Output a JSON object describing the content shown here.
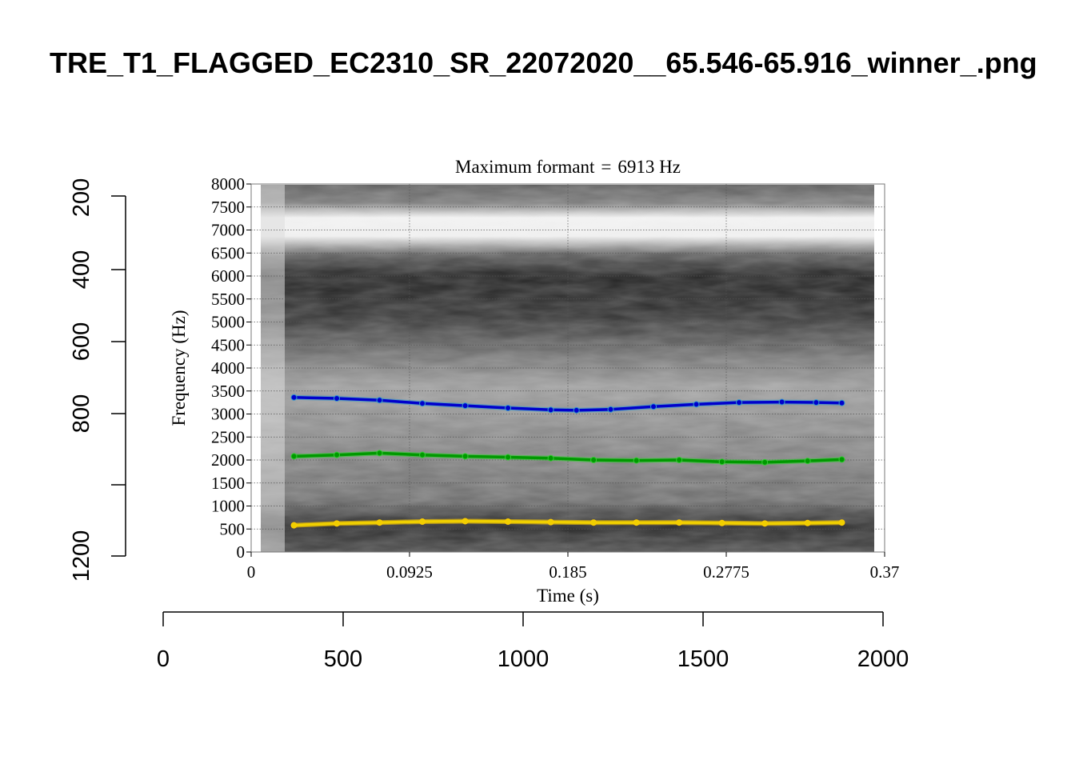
{
  "page_title": "TRE_T1_FLAGGED_EC2310_SR_22072020__65.546-65.916_winner_.png",
  "chart_data": {
    "type": "line",
    "title": "Maximum formant = 6913 Hz",
    "title_parts": {
      "label": "Maximum formant",
      "eq": "=",
      "value": "6913 Hz"
    },
    "xlabel": "Time (s)",
    "ylabel": "Frequency (Hz)",
    "xlim": [
      0,
      0.37
    ],
    "ylim": [
      0,
      8000
    ],
    "x_ticks": [
      "0",
      "0.0925",
      "0.185",
      "0.2775",
      "0.37"
    ],
    "y_ticks": [
      "0",
      "500",
      "1000",
      "1500",
      "2000",
      "2500",
      "3000",
      "3500",
      "4000",
      "4500",
      "5000",
      "5500",
      "6000",
      "6500",
      "7000",
      "7500",
      "8000"
    ],
    "grid": true,
    "background": "spectrogram",
    "series": [
      {
        "color": "#0000cc",
        "point_color": "#3399cc",
        "x": [
          0.025,
          0.05,
          0.075,
          0.1,
          0.125,
          0.15,
          0.175,
          0.19,
          0.21,
          0.235,
          0.26,
          0.285,
          0.31,
          0.33,
          0.345
        ],
        "y": [
          3360,
          3340,
          3300,
          3230,
          3180,
          3130,
          3090,
          3080,
          3100,
          3160,
          3210,
          3250,
          3260,
          3250,
          3240
        ]
      },
      {
        "color": "#009900",
        "point_color": "#33cc33",
        "x": [
          0.025,
          0.05,
          0.075,
          0.1,
          0.125,
          0.15,
          0.175,
          0.2,
          0.225,
          0.25,
          0.275,
          0.3,
          0.325,
          0.345
        ],
        "y": [
          2080,
          2110,
          2150,
          2110,
          2080,
          2060,
          2040,
          2000,
          1990,
          2000,
          1960,
          1950,
          1980,
          2010
        ]
      },
      {
        "color": "#f0d000",
        "point_color": "#ffcc00",
        "x": [
          0.025,
          0.05,
          0.075,
          0.1,
          0.125,
          0.15,
          0.175,
          0.2,
          0.225,
          0.25,
          0.275,
          0.3,
          0.325,
          0.345
        ],
        "y": [
          580,
          620,
          640,
          660,
          670,
          660,
          650,
          640,
          640,
          640,
          630,
          620,
          630,
          640
        ]
      }
    ]
  },
  "outer_axes": {
    "left_ticks": [
      "200",
      "400",
      "600",
      "800",
      "1200"
    ],
    "bottom_ticks": [
      "0",
      "500",
      "1000",
      "1500",
      "2000"
    ]
  }
}
